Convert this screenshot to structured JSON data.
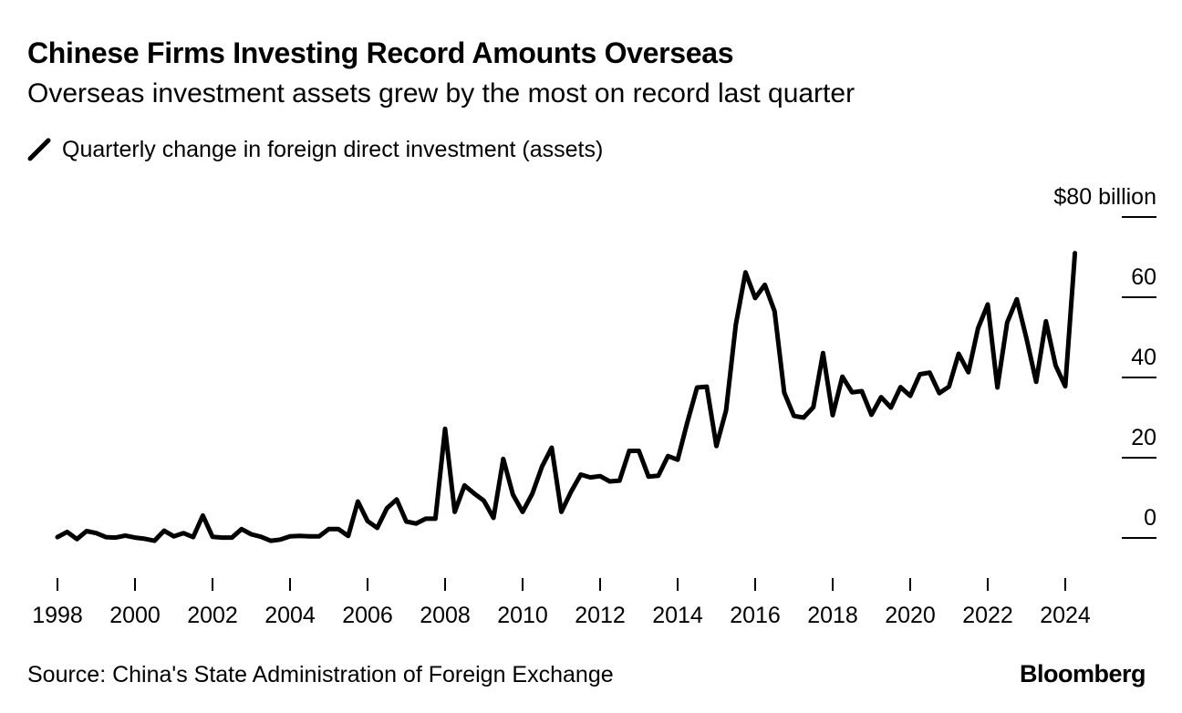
{
  "title": "Chinese Firms Investing Record Amounts Overseas",
  "subtitle": "Overseas investment assets grew by the most on record last quarter",
  "legend": {
    "label": "Quarterly change in foreign direct investment (assets)"
  },
  "source": "Source: China's State Administration of Foreign Exchange",
  "brand": "Bloomberg",
  "colors": {
    "line": "#000000",
    "background": "#ffffff"
  },
  "chart_data": {
    "type": "line",
    "title": "Chinese Firms Investing Record Amounts Overseas",
    "subtitle": "Overseas investment assets grew by the most on record last quarter",
    "ylabel": "$80 billion",
    "y_tick_labels": [
      "$80 billion",
      "60",
      "40",
      "20",
      "0"
    ],
    "y_ticks": [
      80,
      60,
      40,
      20,
      0
    ],
    "ylim": [
      -10,
      80
    ],
    "x_tick_labels": [
      "1998",
      "2000",
      "2002",
      "2004",
      "2006",
      "2008",
      "2010",
      "2012",
      "2014",
      "2016",
      "2018",
      "2020",
      "2022",
      "2024"
    ],
    "xlim": [
      "1998-01",
      "2024-06"
    ],
    "y_axis_position": "right",
    "grid": false,
    "legend_position": "top-left",
    "series": [
      {
        "name": "Quarterly change in foreign direct investment (assets)",
        "x": [
          "1998-Q1",
          "1998-Q2",
          "1998-Q3",
          "1998-Q4",
          "1999-Q1",
          "1999-Q2",
          "1999-Q3",
          "1999-Q4",
          "2000-Q1",
          "2000-Q2",
          "2000-Q3",
          "2000-Q4",
          "2001-Q1",
          "2001-Q2",
          "2001-Q3",
          "2001-Q4",
          "2002-Q1",
          "2002-Q2",
          "2002-Q3",
          "2002-Q4",
          "2003-Q1",
          "2003-Q2",
          "2003-Q3",
          "2003-Q4",
          "2004-Q1",
          "2004-Q2",
          "2004-Q3",
          "2004-Q4",
          "2005-Q1",
          "2005-Q2",
          "2005-Q3",
          "2005-Q4",
          "2006-Q1",
          "2006-Q2",
          "2006-Q3",
          "2006-Q4",
          "2007-Q1",
          "2007-Q2",
          "2007-Q3",
          "2007-Q4",
          "2008-Q1",
          "2008-Q2",
          "2008-Q3",
          "2008-Q4",
          "2009-Q1",
          "2009-Q2",
          "2009-Q3",
          "2009-Q4",
          "2010-Q1",
          "2010-Q2",
          "2010-Q3",
          "2010-Q4",
          "2011-Q1",
          "2011-Q2",
          "2011-Q3",
          "2011-Q4",
          "2012-Q1",
          "2012-Q2",
          "2012-Q3",
          "2012-Q4",
          "2013-Q1",
          "2013-Q2",
          "2013-Q3",
          "2013-Q4",
          "2014-Q1",
          "2014-Q2",
          "2014-Q3",
          "2014-Q4",
          "2015-Q1",
          "2015-Q2",
          "2015-Q3",
          "2015-Q4",
          "2016-Q1",
          "2016-Q2",
          "2016-Q3",
          "2016-Q4",
          "2017-Q1",
          "2017-Q2",
          "2017-Q3",
          "2017-Q4",
          "2018-Q1",
          "2018-Q2",
          "2018-Q3",
          "2018-Q4",
          "2019-Q1",
          "2019-Q2",
          "2019-Q3",
          "2019-Q4",
          "2020-Q1",
          "2020-Q2",
          "2020-Q3",
          "2020-Q4",
          "2021-Q1",
          "2021-Q2",
          "2021-Q3",
          "2021-Q4",
          "2022-Q1",
          "2022-Q2",
          "2022-Q3",
          "2022-Q4",
          "2023-Q1",
          "2023-Q2",
          "2023-Q3",
          "2023-Q4",
          "2024-Q1",
          "2024-Q2"
        ],
        "values": [
          0.2,
          1.5,
          -0.3,
          1.7,
          1.2,
          0.2,
          0.1,
          0.6,
          0.1,
          -0.2,
          -0.7,
          1.8,
          0.4,
          1.2,
          0.2,
          5.6,
          0.3,
          0.1,
          0.1,
          2.2,
          0.9,
          0.3,
          -0.7,
          -0.4,
          0.4,
          0.5,
          0.4,
          0.4,
          2.2,
          2.2,
          0.5,
          9.1,
          4.2,
          2.5,
          7.4,
          9.6,
          4.1,
          3.6,
          4.8,
          4.8,
          27.2,
          6.5,
          13.1,
          11.1,
          9.3,
          5.0,
          19.7,
          10.8,
          6.5,
          11.0,
          17.8,
          22.5,
          6.5,
          11.5,
          15.8,
          15.1,
          15.4,
          14.1,
          14.3,
          21.7,
          21.7,
          15.3,
          15.5,
          20.4,
          19.5,
          28.8,
          37.5,
          37.7,
          22.9,
          31.8,
          53.2,
          66.2,
          59.8,
          63.1,
          56.5,
          36.2,
          30.4,
          30.0,
          32.6,
          46.1,
          30.6,
          40.2,
          36.3,
          36.6,
          30.7,
          35.1,
          32.5,
          37.6,
          35.4,
          40.8,
          41.2,
          36.1,
          37.7,
          45.9,
          41.3,
          52.3,
          58.2,
          37.5,
          53.7,
          59.5,
          49.7,
          38.9,
          54.0,
          43.0,
          37.8,
          71.0
        ]
      }
    ]
  }
}
